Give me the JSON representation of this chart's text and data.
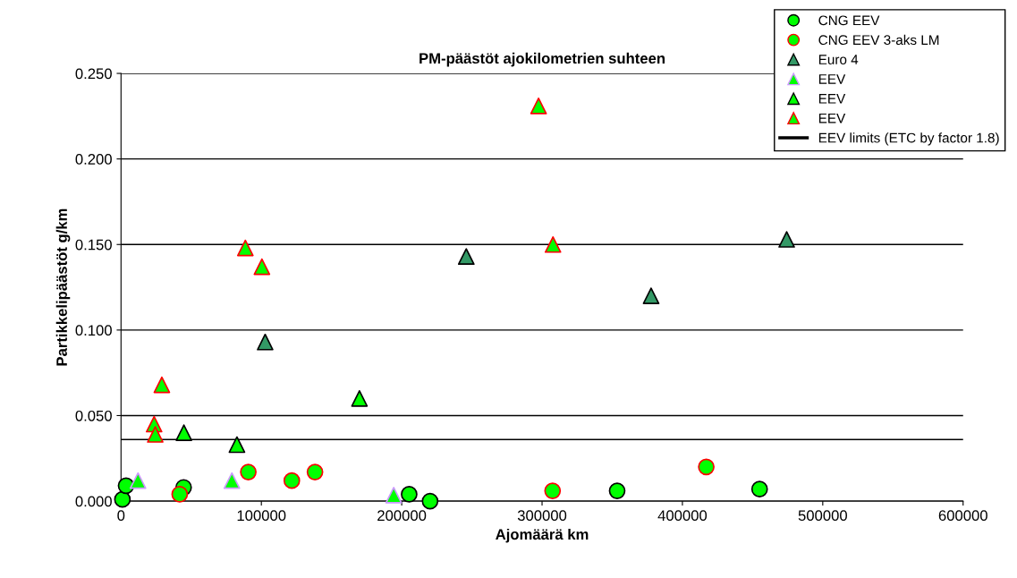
{
  "chart_data": {
    "type": "scatter",
    "title": "PM-päästöt ajokilometrien suhteen",
    "xlabel": "Ajomäärä km",
    "ylabel": "Partikkelipäästöt g/km",
    "xlim": [
      0,
      600000
    ],
    "xticks": [
      0,
      100000,
      200000,
      300000,
      400000,
      500000,
      600000
    ],
    "ylim": [
      0,
      0.25
    ],
    "yticks": [
      {
        "value": 0,
        "label": "0.000"
      },
      {
        "value": 0.05,
        "label": "0.050"
      },
      {
        "value": 0.1,
        "label": "0.100"
      },
      {
        "value": 0.15,
        "label": "0.150"
      },
      {
        "value": 0.2,
        "label": "0.200"
      },
      {
        "value": 0.25,
        "label": "0.250"
      }
    ],
    "grid": "y",
    "legend": "top right",
    "series": [
      {
        "name": "CNG EEV",
        "marker": "circle",
        "color": "#00ff00",
        "x": [
          1000,
          3600,
          44600,
          205300,
          220200,
          353500,
          455000
        ],
        "values": [
          0.001,
          0.009,
          0.008,
          0.004,
          0.0,
          0.006,
          0.007
        ]
      },
      {
        "name": "CNG EEV 3-aks LM",
        "marker": "circle",
        "color": "#00ff00",
        "x": [
          41800,
          90700,
          121700,
          138200,
          307500,
          417000
        ],
        "values": [
          0.004,
          0.017,
          0.012,
          0.017,
          0.006,
          0.02
        ]
      },
      {
        "name": "Euro 4",
        "marker": "triangle",
        "color": "#339966",
        "x": [
          102700,
          246000,
          377700,
          474300
        ],
        "values": [
          0.093,
          0.143,
          0.12,
          0.153
        ]
      },
      {
        "name": "EEV",
        "marker": "triangle",
        "color": "#00ff00",
        "x": [
          12100,
          79000,
          194300
        ],
        "values": [
          0.012,
          0.012,
          0.0035
        ]
      },
      {
        "name": "EEV",
        "marker": "triangle",
        "color": "#00ff00",
        "x": [
          44800,
          82600,
          169900
        ],
        "values": [
          0.04,
          0.033,
          0.06
        ]
      },
      {
        "name": "EEV",
        "marker": "triangle",
        "color": "#00ff00",
        "x": [
          29100,
          23600,
          24400,
          297500,
          88600,
          100400,
          307800
        ],
        "values": [
          0.068,
          0.045,
          0.039,
          0.231,
          0.148,
          0.137,
          0.15
        ]
      }
    ],
    "ref_lines": [
      {
        "axis": "y",
        "value": 0.036,
        "label": "EEV limits (ETC by factor 1.8)",
        "color": "#000000",
        "line_style": "solid"
      }
    ]
  }
}
